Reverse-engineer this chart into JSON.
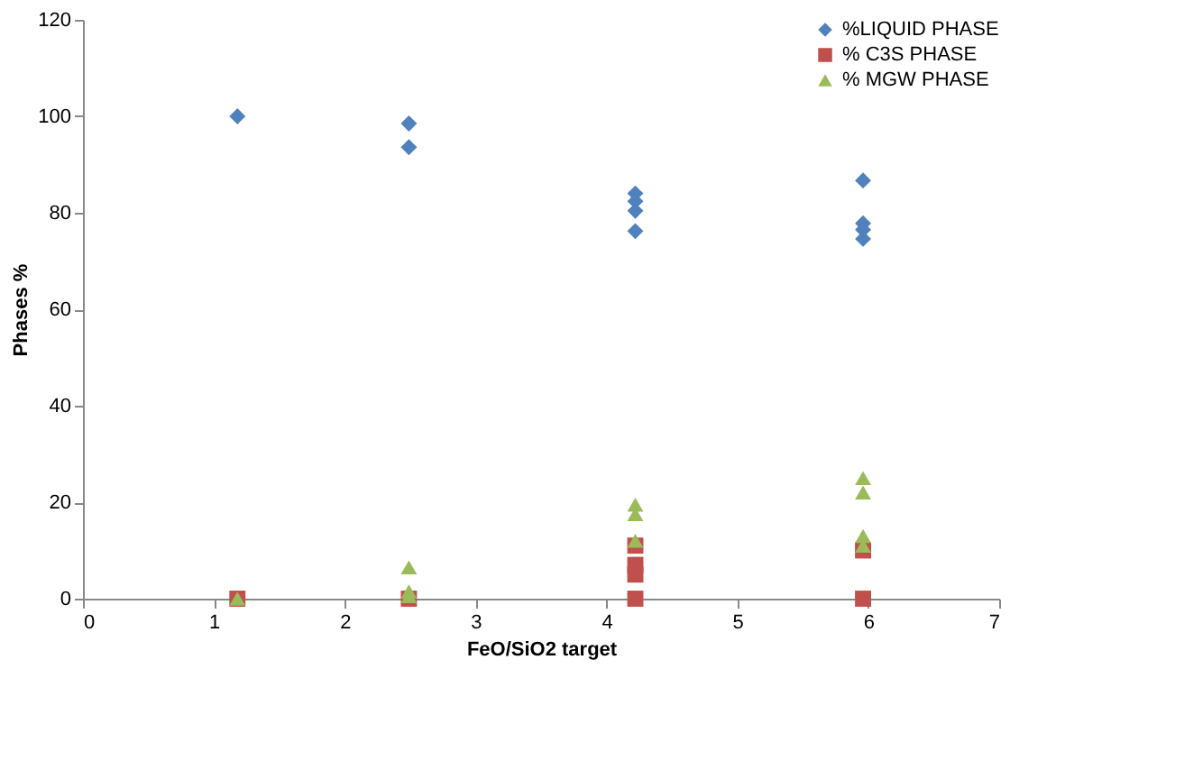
{
  "chart_data": {
    "type": "scatter",
    "xlabel": "FeO/SiO2 target",
    "ylabel": "Phases %",
    "xlim": [
      0,
      7
    ],
    "xticks": [
      0,
      1,
      2,
      3,
      4,
      5,
      6,
      7
    ],
    "ylim": [
      0,
      120
    ],
    "yticks": [
      0,
      20,
      40,
      60,
      80,
      100,
      120
    ],
    "grid": false,
    "legend": "top right",
    "series": [
      {
        "name": "%LIQUID PHASE",
        "color": "#4f81bd",
        "marker": "diamond",
        "x": [
          1.18,
          2.49,
          2.49,
          4.22,
          4.22,
          4.22,
          4.22,
          5.96,
          5.96,
          5.96,
          5.96
        ],
        "values": [
          100,
          98.5,
          93.6,
          84,
          82.4,
          80.4,
          76.2,
          86.7,
          77.8,
          76.5,
          74.6
        ]
      },
      {
        "name": "% C3S PHASE",
        "color": "#c0504d",
        "marker": "square",
        "x": [
          1.18,
          2.49,
          4.22,
          4.22,
          4.22,
          4.22,
          5.96,
          5.96
        ],
        "values": [
          0,
          0,
          11,
          7,
          5,
          0,
          10,
          0
        ]
      },
      {
        "name": "% MGW PHASE",
        "color": "#9bbb59",
        "marker": "triangle",
        "x": [
          1.18,
          2.49,
          2.49,
          2.49,
          4.22,
          4.22,
          4.22,
          5.96,
          5.96,
          5.96,
          5.96
        ],
        "values": [
          0,
          6.5,
          1.5,
          0.5,
          19.5,
          17.5,
          12,
          25,
          22,
          13,
          11
        ]
      }
    ]
  }
}
